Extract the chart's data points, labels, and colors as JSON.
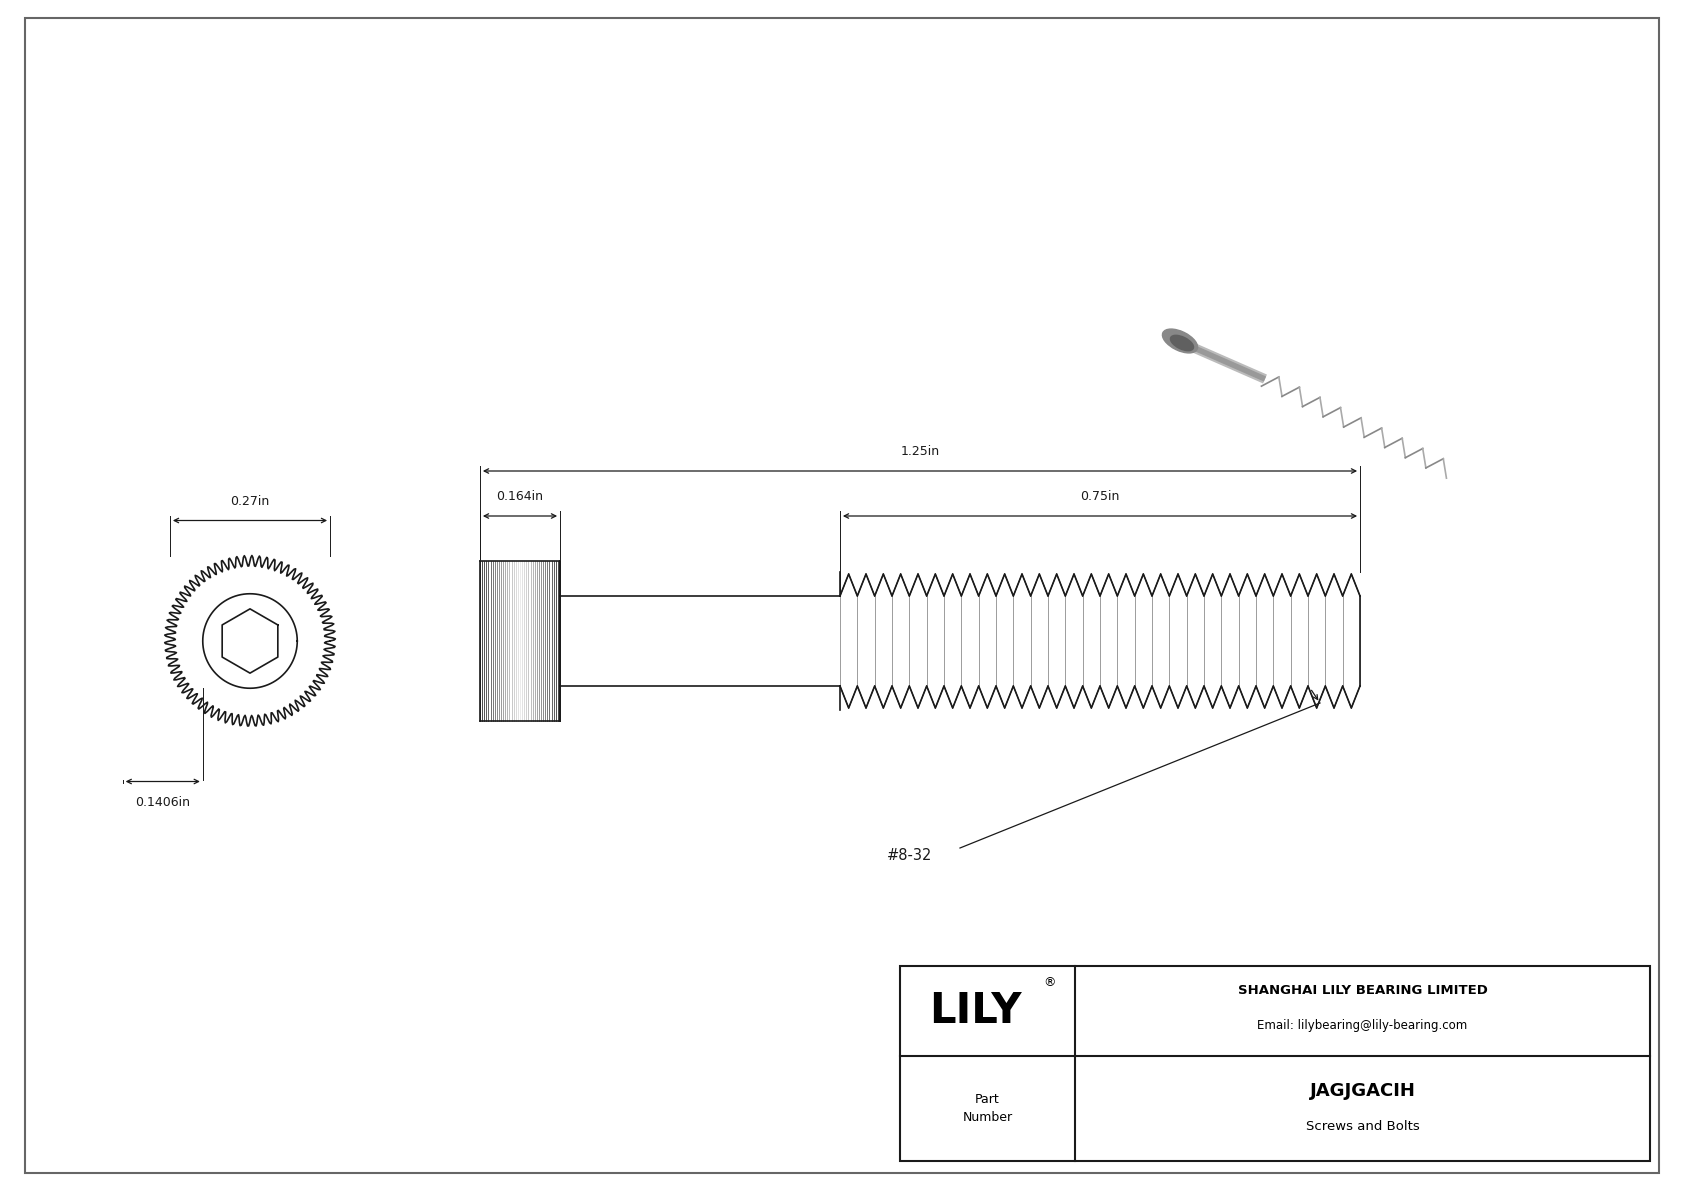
{
  "bg_color": "#ffffff",
  "line_color": "#1a1a1a",
  "dim_color": "#1a1a1a",
  "title": "JAGJGACIH",
  "subtitle": "Screws and Bolts",
  "company": "SHANGHAI LILY BEARING LIMITED",
  "email": "Email: lilybearing@lily-bearing.com",
  "part_label": "Part\nNumber",
  "dim_head_width": "0.27in",
  "dim_head_length": "0.164in",
  "dim_total_length": "1.25in",
  "dim_thread_length": "0.75in",
  "dim_shank_dia": "0.1406in",
  "thread_label": "#8-32",
  "lw": 1.2,
  "border_color": "#888888"
}
